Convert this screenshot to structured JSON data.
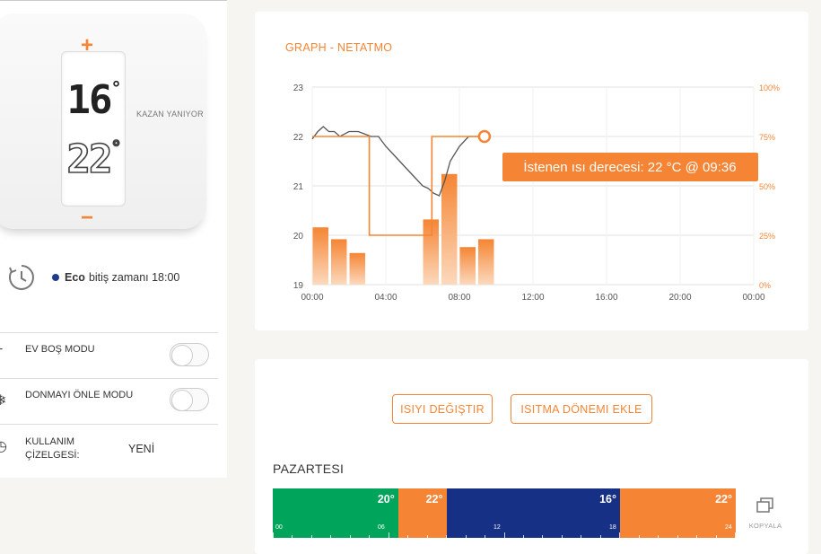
{
  "thermostat": {
    "current_temp": "16",
    "set_temp": "22",
    "degree_symbol": "°",
    "plus": "+",
    "minus": "−",
    "status": "KAZAN YANIYOR"
  },
  "eco": {
    "label": "Eco",
    "text": "bitiş zamanı 18:00",
    "dot_color": "#1e3c8c"
  },
  "settings": [
    {
      "label": "EV BOŞ MODU",
      "icon": "away-icon",
      "toggle": false
    },
    {
      "label": "DONMAYI ÖNLE MODU",
      "icon": "snowflake-icon",
      "toggle": false
    },
    {
      "label": "KULLANIM ÇİZELGESİ:",
      "icon": "schedule-icon",
      "value": "YENİ"
    }
  ],
  "graph": {
    "title": "GRAPH -   NETATMO",
    "tooltip": "İstenen ısı derecesi: 22 °C @ 09:36"
  },
  "chart_data": {
    "type": "line",
    "x_ticks": [
      "00:00",
      "04:00",
      "08:00",
      "12:00",
      "16:00",
      "20:00",
      "00:00"
    ],
    "y_left_ticks": [
      "19",
      "20",
      "21",
      "22",
      "23"
    ],
    "y_right_ticks": [
      "0%",
      "25%",
      "50%",
      "75%",
      "100%"
    ],
    "ylim": [
      19,
      23
    ],
    "y2lim": [
      0,
      100
    ],
    "xlim_hours": [
      0,
      24
    ],
    "accent_color": "#f58534",
    "measured_color": "#555555",
    "series": [
      {
        "kind": "measured",
        "x_hours": [
          0,
          0.3,
          0.6,
          0.9,
          1.2,
          1.5,
          2.0,
          2.5,
          3.2,
          3.6,
          4.0,
          4.5,
          5.0,
          5.5,
          6.0,
          6.3,
          6.6,
          6.9,
          7.2,
          7.5,
          8.0,
          8.5,
          9.0,
          9.36
        ],
        "y": [
          21.95,
          22.1,
          22.2,
          22.1,
          22.1,
          22.0,
          22.1,
          22.1,
          22.0,
          22.0,
          21.8,
          21.6,
          21.4,
          21.2,
          21.0,
          20.95,
          20.85,
          20.8,
          21.1,
          21.5,
          21.8,
          22.0,
          22.0,
          22.0
        ]
      },
      {
        "kind": "setpoint",
        "x_hours": [
          0,
          3.1,
          3.1,
          6.5,
          6.5,
          9.36
        ],
        "y": [
          22,
          22,
          20,
          20,
          22,
          22
        ]
      }
    ],
    "bars": {
      "width_hours": 0.95,
      "x_hours": [
        0.5,
        1.5,
        2.5,
        6.5,
        7.5,
        8.5,
        9.5
      ],
      "values_pct": [
        29,
        23,
        16,
        33,
        56,
        19,
        23
      ]
    }
  },
  "schedule": {
    "change_temp_label": "ISIYI DEĞIŞTIR",
    "add_period_label": "ISITMA DÖNEMI EKLE",
    "day": "PAZARTESI",
    "segments": [
      {
        "temp": "20°",
        "start": 0,
        "end": 6.5,
        "color": "#00a45a"
      },
      {
        "temp": "22°",
        "start": 6.5,
        "end": 9,
        "color": "#f58534"
      },
      {
        "temp": "16°",
        "start": 9,
        "end": 18,
        "color": "#163086"
      },
      {
        "temp": "22°",
        "start": 18,
        "end": 24,
        "color": "#f58534"
      }
    ],
    "hour_labels": [
      "00",
      "06",
      "12",
      "18",
      "24"
    ],
    "copy_label": "KOPYALA"
  }
}
